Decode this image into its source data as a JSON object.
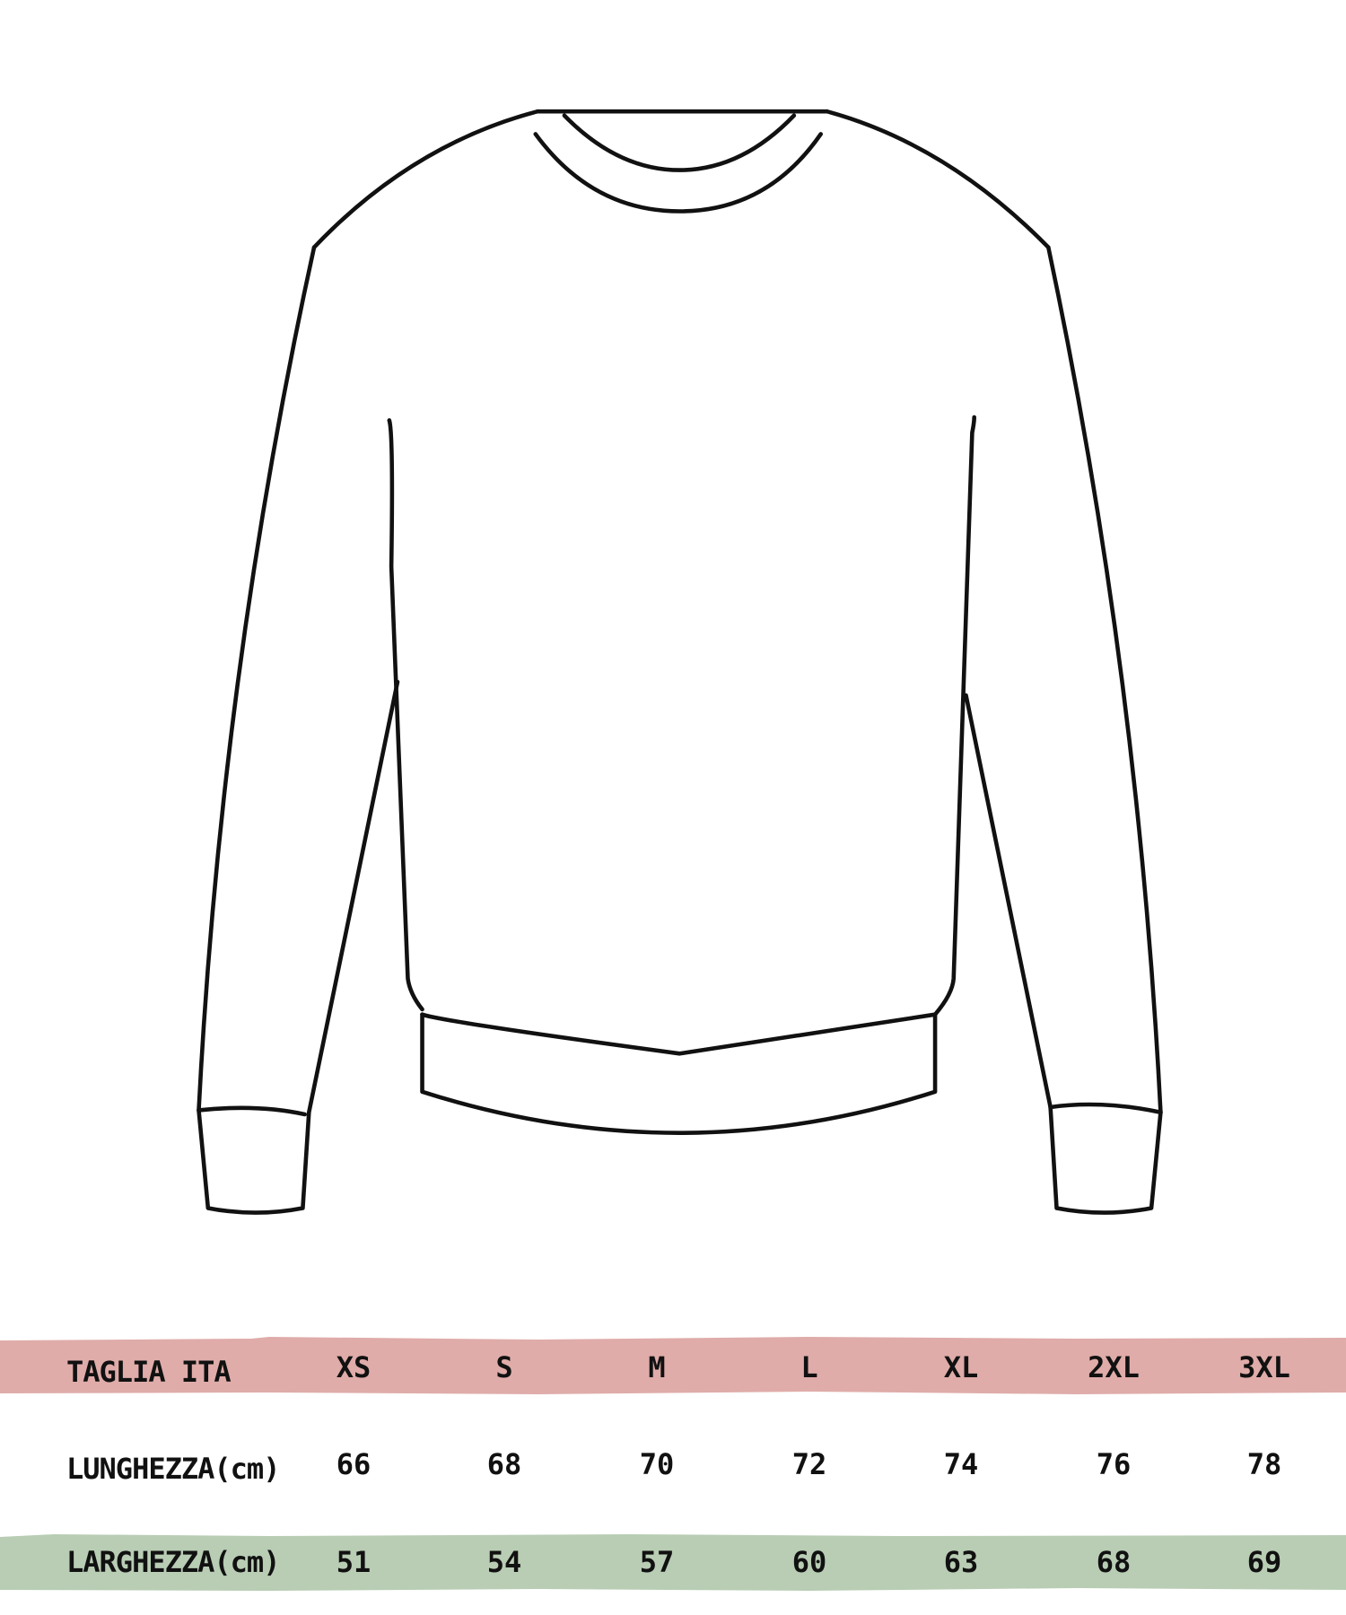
{
  "colors": {
    "header_band": "#dfaca9",
    "width_band": "#b8cdb4",
    "outline": "#111111"
  },
  "illustration": "sweater-outline-icon",
  "size_table": {
    "header": {
      "label": "TAGLIA ITA",
      "sizes": [
        "XS",
        "S",
        "M",
        "L",
        "XL",
        "2XL",
        "3XL"
      ]
    },
    "length": {
      "label": "LUNGHEZZA(cm)",
      "values": [
        "66",
        "68",
        "70",
        "72",
        "74",
        "76",
        "78"
      ]
    },
    "width": {
      "label": "LARGHEZZA(cm)",
      "values": [
        "51",
        "54",
        "57",
        "60",
        "63",
        "68",
        "69"
      ]
    }
  }
}
